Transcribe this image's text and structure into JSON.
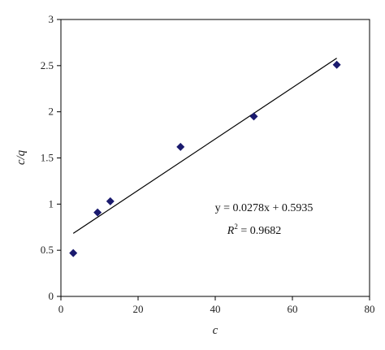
{
  "chart_data": {
    "type": "scatter",
    "title": "",
    "xlabel": "c",
    "ylabel": "c/q",
    "xlim": [
      0,
      80
    ],
    "ylim": [
      0,
      3
    ],
    "xticks": [
      "0",
      "20",
      "40",
      "60",
      "80"
    ],
    "yticks": [
      "0",
      "0.5",
      "1",
      "1.5",
      "2",
      "2.5",
      "3"
    ],
    "grid": false,
    "legend": "none",
    "marker_color": "#1a1a6e",
    "series": [
      {
        "marker": "diamond",
        "x": [
          3.2,
          9.5,
          12.8,
          31.0,
          50.0,
          71.5
        ],
        "y": [
          0.47,
          0.91,
          1.03,
          1.62,
          1.95,
          2.51
        ]
      }
    ],
    "trendline": {
      "slope": 0.0278,
      "intercept": 0.5935,
      "x_range": [
        3.2,
        71.5
      ],
      "equation": "y = 0.0278x + 0.5935",
      "r_squared_label": "R",
      "r_squared_sup": "2",
      "r_squared_value": " = 0.9682"
    }
  }
}
